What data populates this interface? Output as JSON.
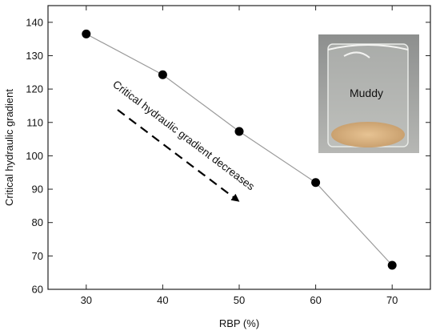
{
  "chart_data": {
    "type": "line",
    "xlabel": "RBP (%)",
    "ylabel": "Critical hydraulic gradient",
    "x": [
      30,
      40,
      50,
      60,
      70
    ],
    "y": [
      136.5,
      124.3,
      107.3,
      92.0,
      67.2
    ],
    "xlim": [
      25,
      75
    ],
    "ylim": [
      60,
      145
    ],
    "xticks": [
      30,
      40,
      50,
      60,
      70
    ],
    "yticks": [
      60,
      70,
      80,
      90,
      100,
      110,
      120,
      130,
      140
    ],
    "grid": false,
    "legend": "none",
    "annotations": {
      "trend_text": "Critical hydraulic gradient decreases",
      "inset_label": "Muddy"
    },
    "colors": {
      "line": "#9a9a9a",
      "marker": "#000000",
      "axis": "#222222"
    }
  }
}
